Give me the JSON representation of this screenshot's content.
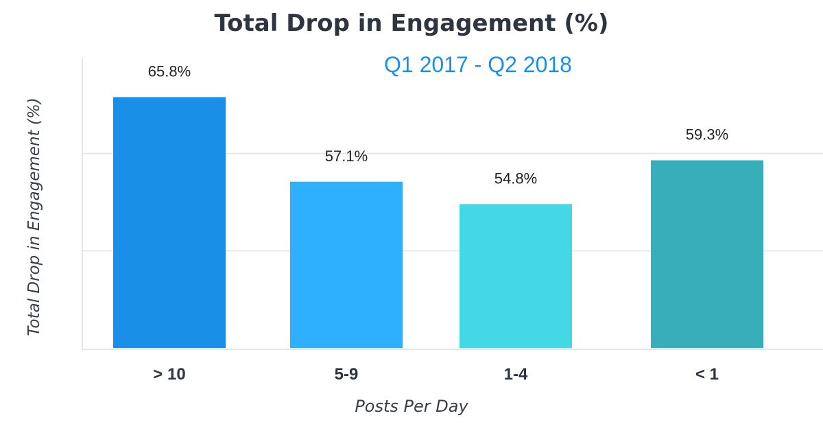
{
  "chart_data": {
    "type": "bar",
    "title": "Total Drop in Engagement (%)",
    "subtitle": "Q1 2017 - Q2 2018",
    "xlabel": "Posts Per Day",
    "ylabel": "Total Drop in Engagement (%)",
    "categories": [
      "> 10",
      "5-9",
      "1-4",
      "< 1"
    ],
    "values": [
      65.8,
      57.1,
      54.8,
      59.3
    ],
    "data_labels": [
      "65.8%",
      "57.1%",
      "54.8%",
      "59.3%"
    ],
    "colors": [
      "#1a8fe8",
      "#2eb0ff",
      "#44d7e6",
      "#39aebb"
    ],
    "ylim": [
      40,
      70
    ],
    "yticks": [
      40,
      50,
      60,
      70
    ],
    "grid": true,
    "legend": "none"
  }
}
